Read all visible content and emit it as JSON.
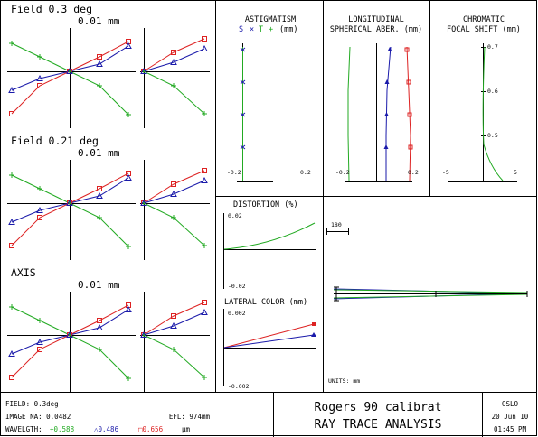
{
  "fans": [
    {
      "label": "Field 0.3 deg",
      "scale": "0.01 mm"
    },
    {
      "label": "Field 0.21 deg",
      "scale": "0.01 mm"
    },
    {
      "label": "AXIS",
      "scale": "0.01 mm"
    }
  ],
  "astigmatism": {
    "title": "ASTIGMATISM",
    "legend_s": "S",
    "legend_t": "T",
    "legend_unit": "(mm)",
    "x_min": "-0.2",
    "x_max": "0.2"
  },
  "spherical": {
    "title_line1": "LONGITUDINAL",
    "title_line2": "SPHERICAL ABER. (mm)",
    "x_min": "-0.2",
    "x_max": "0.2"
  },
  "chromatic": {
    "title_line1": "CHROMATIC",
    "title_line2": "FOCAL SHIFT (mm)",
    "y_ticks": [
      "0.7",
      "0.6",
      "0.5"
    ],
    "x_min": "-5",
    "x_max": "5"
  },
  "distortion": {
    "title": "DISTORTION (%)",
    "y_max": "0.02",
    "y_min": "-0.02"
  },
  "lateral_color": {
    "title": "LATERAL COLOR (mm)",
    "y_max": "0.002",
    "y_min": "-0.002"
  },
  "lens": {
    "scale_label": "180",
    "units": "UNITS: mm"
  },
  "footer": {
    "field": "FIELD: 0.3deg",
    "image_na": "IMAGE NA: 0.0482",
    "efl": "EFL: 974mm",
    "wavelength_label": "WAVELGTH:",
    "wavelengths": [
      {
        "marker": "+",
        "value": "0.588",
        "color": "#22aa22"
      },
      {
        "marker": "△",
        "value": "0.486",
        "color": "#1a1aaa"
      },
      {
        "marker": "□",
        "value": "0.656",
        "color": "#dd2222"
      }
    ],
    "wavelength_unit": "µm",
    "lens_name": "Rogers 90 calibrat",
    "analysis_title": "RAY TRACE ANALYSIS",
    "program": "OSLO",
    "date": "20 Jun 10",
    "time": "01:45 PM"
  },
  "colors": {
    "green": "#22aa22",
    "blue": "#1a1aaa",
    "red": "#dd2222",
    "frame": "#000000"
  }
}
